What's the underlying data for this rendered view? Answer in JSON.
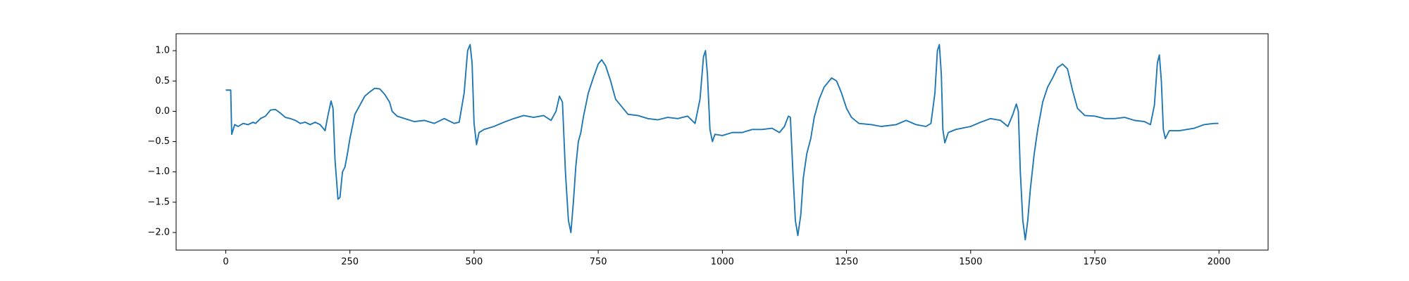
{
  "chart_data": {
    "type": "line",
    "color": "#1f77b4",
    "x": [
      0,
      8,
      10,
      12,
      18,
      25,
      35,
      45,
      55,
      60,
      70,
      80,
      90,
      100,
      110,
      120,
      130,
      140,
      150,
      160,
      170,
      180,
      190,
      200,
      205,
      212,
      216,
      220,
      226,
      230,
      235,
      240,
      245,
      250,
      255,
      260,
      270,
      280,
      290,
      300,
      310,
      320,
      330,
      335,
      345,
      360,
      380,
      400,
      420,
      440,
      460,
      470,
      480,
      487,
      492,
      496,
      500,
      505,
      510,
      520,
      540,
      560,
      580,
      600,
      620,
      640,
      655,
      665,
      672,
      678,
      684,
      690,
      695,
      700,
      705,
      710,
      715,
      720,
      730,
      740,
      750,
      757,
      765,
      775,
      785,
      795,
      810,
      830,
      850,
      870,
      890,
      910,
      930,
      945,
      955,
      962,
      966,
      970,
      975,
      980,
      985,
      1000,
      1020,
      1040,
      1060,
      1080,
      1100,
      1115,
      1125,
      1133,
      1137,
      1142,
      1147,
      1152,
      1158,
      1163,
      1170,
      1178,
      1185,
      1195,
      1205,
      1220,
      1230,
      1240,
      1250,
      1260,
      1275,
      1300,
      1320,
      1350,
      1370,
      1390,
      1410,
      1420,
      1428,
      1433,
      1437,
      1441,
      1444,
      1448,
      1455,
      1470,
      1500,
      1520,
      1540,
      1560,
      1575,
      1585,
      1592,
      1596,
      1600,
      1605,
      1610,
      1615,
      1620,
      1628,
      1635,
      1645,
      1655,
      1665,
      1675,
      1685,
      1695,
      1705,
      1715,
      1730,
      1750,
      1770,
      1790,
      1810,
      1830,
      1850,
      1862,
      1870,
      1876,
      1880,
      1884,
      1888,
      1892,
      1900,
      1920,
      1950,
      1970,
      1990,
      1999
    ],
    "values": [
      0.35,
      0.35,
      0.35,
      -0.38,
      -0.22,
      -0.25,
      -0.2,
      -0.22,
      -0.18,
      -0.2,
      -0.12,
      -0.08,
      0.02,
      0.03,
      -0.03,
      -0.1,
      -0.12,
      -0.15,
      -0.2,
      -0.18,
      -0.22,
      -0.18,
      -0.22,
      -0.32,
      -0.1,
      0.17,
      0.05,
      -0.8,
      -1.45,
      -1.42,
      -1.0,
      -0.92,
      -0.7,
      -0.45,
      -0.25,
      -0.05,
      0.1,
      0.25,
      0.32,
      0.38,
      0.37,
      0.28,
      0.15,
      0,
      -0.08,
      -0.12,
      -0.17,
      -0.15,
      -0.2,
      -0.12,
      -0.2,
      -0.18,
      0.3,
      1.0,
      1.1,
      0.8,
      -0.2,
      -0.55,
      -0.35,
      -0.3,
      -0.25,
      -0.18,
      -0.12,
      -0.07,
      -0.1,
      -0.07,
      -0.15,
      0,
      0.25,
      0.15,
      -1.0,
      -1.8,
      -2.0,
      -1.5,
      -0.9,
      -0.5,
      -0.35,
      -0.1,
      0.3,
      0.55,
      0.78,
      0.85,
      0.75,
      0.5,
      0.2,
      0.1,
      -0.05,
      -0.07,
      -0.12,
      -0.14,
      -0.1,
      -0.12,
      -0.08,
      -0.2,
      0.2,
      0.9,
      1.0,
      0.6,
      -0.3,
      -0.5,
      -0.38,
      -0.4,
      -0.35,
      -0.35,
      -0.3,
      -0.3,
      -0.28,
      -0.35,
      -0.25,
      -0.08,
      -0.1,
      -1.0,
      -1.8,
      -2.05,
      -1.7,
      -1.1,
      -0.7,
      -0.45,
      -0.1,
      0.2,
      0.4,
      0.55,
      0.5,
      0.3,
      0.05,
      -0.1,
      -0.2,
      -0.22,
      -0.25,
      -0.22,
      -0.15,
      -0.22,
      -0.25,
      -0.2,
      0.3,
      1.0,
      1.1,
      0.6,
      -0.3,
      -0.52,
      -0.35,
      -0.3,
      -0.25,
      -0.18,
      -0.12,
      -0.15,
      -0.25,
      -0.05,
      0.12,
      0.0,
      -1.0,
      -1.8,
      -2.12,
      -1.8,
      -1.3,
      -0.7,
      -0.3,
      0.15,
      0.4,
      0.55,
      0.72,
      0.78,
      0.7,
      0.35,
      0.05,
      -0.07,
      -0.08,
      -0.12,
      -0.12,
      -0.1,
      -0.15,
      -0.17,
      -0.22,
      0.1,
      0.8,
      0.93,
      0.5,
      -0.3,
      -0.45,
      -0.32,
      -0.32,
      -0.28,
      -0.22,
      -0.2,
      -0.2
    ],
    "xlim": [
      -99.95,
      2098.95
    ],
    "xticks": [
      0,
      250,
      500,
      750,
      1000,
      1250,
      1500,
      1750,
      2000
    ],
    "ylim": [
      -2.29,
      1.28
    ],
    "yticks": [
      {
        "value": -2.0,
        "label": "−2.0"
      },
      {
        "value": -1.5,
        "label": "−1.5"
      },
      {
        "value": -1.0,
        "label": "−1.0"
      },
      {
        "value": -0.5,
        "label": "−0.5"
      },
      {
        "value": 0.0,
        "label": "0.0"
      },
      {
        "value": 0.5,
        "label": "0.5"
      },
      {
        "value": 1.0,
        "label": "1.0"
      }
    ]
  }
}
